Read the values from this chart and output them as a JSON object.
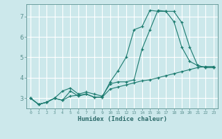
{
  "xlabel": "Humidex (Indice chaleur)",
  "background_color": "#cce8eb",
  "grid_color": "#ffffff",
  "line_color": "#1a7a6e",
  "xlim": [
    -0.5,
    23.5
  ],
  "ylim": [
    2.5,
    7.6
  ],
  "yticks": [
    3,
    4,
    5,
    6,
    7
  ],
  "xticks": [
    0,
    1,
    2,
    3,
    4,
    5,
    6,
    7,
    8,
    9,
    10,
    11,
    12,
    13,
    14,
    15,
    16,
    17,
    18,
    19,
    20,
    21,
    22,
    23
  ],
  "line1_y": [
    3.0,
    2.7,
    2.8,
    3.0,
    2.9,
    3.35,
    3.1,
    3.2,
    3.05,
    3.05,
    3.8,
    4.35,
    5.0,
    6.35,
    6.5,
    7.3,
    7.25,
    7.25,
    6.75,
    5.5,
    4.8,
    4.6,
    4.5,
    4.5
  ],
  "line2_y": [
    3.0,
    2.7,
    2.8,
    3.0,
    3.35,
    3.5,
    3.2,
    3.3,
    3.2,
    3.1,
    3.7,
    3.8,
    3.8,
    3.9,
    5.4,
    6.35,
    7.3,
    7.25,
    7.25,
    6.7,
    5.5,
    4.6,
    4.5,
    4.5
  ],
  "line3_y": [
    3.0,
    2.7,
    2.8,
    3.0,
    2.9,
    3.1,
    3.15,
    3.2,
    3.05,
    3.05,
    3.45,
    3.55,
    3.65,
    3.75,
    3.85,
    3.9,
    4.0,
    4.1,
    4.2,
    4.3,
    4.4,
    4.5,
    4.55,
    4.55
  ]
}
